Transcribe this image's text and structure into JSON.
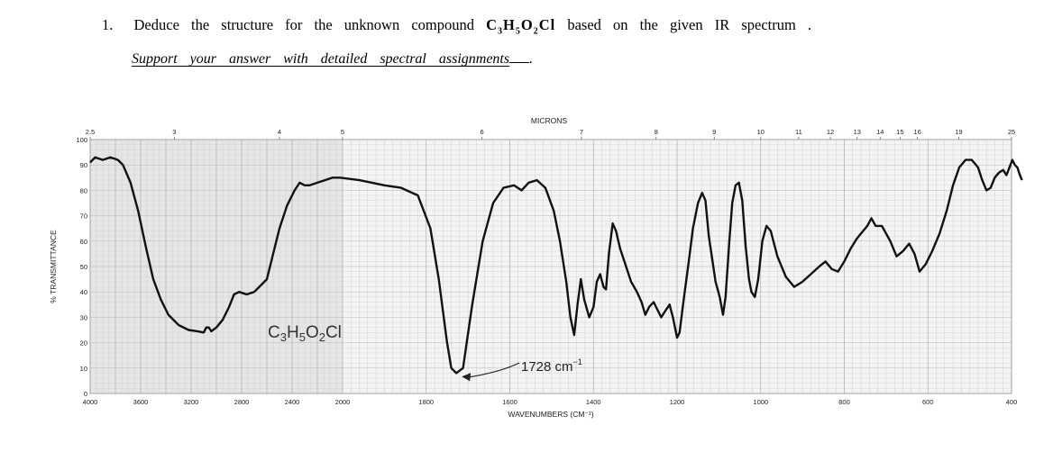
{
  "question": {
    "number": "1.",
    "text_before": "Deduce the structure for the unknown compound",
    "formula_parts": [
      {
        "t": "C",
        "sub": false
      },
      {
        "t": "3",
        "sub": true
      },
      {
        "t": "H",
        "sub": false
      },
      {
        "t": "5",
        "sub": true
      },
      {
        "t": "O",
        "sub": false
      },
      {
        "t": "2",
        "sub": true
      },
      {
        "t": "Cl",
        "sub": false
      }
    ],
    "text_after": "based on the given IR spectrum .",
    "support_text": "Support your answer with detailed spectral assignments",
    "support_trailing": "."
  },
  "chart_data": {
    "type": "line",
    "title": "MICRONS",
    "xlabel": "WAVENUMBERS (CM⁻¹)",
    "ylabel": "% TRANSMITTANCE",
    "x_ticks": [
      "4000",
      "3600",
      "3200",
      "2800",
      "2400",
      "2000",
      "1800",
      "1600",
      "1400",
      "1200",
      "1000",
      "800",
      "600",
      "400"
    ],
    "y_ticks": [
      "100",
      "90",
      "80",
      "70",
      "60",
      "50",
      "40",
      "30",
      "20",
      "10",
      "0"
    ],
    "micron_ticks": [
      "2.5",
      "3",
      "4",
      "5",
      "6",
      "7",
      "8",
      "9",
      "10",
      "11",
      "12",
      "13",
      "14",
      "15",
      "16",
      "19",
      "25"
    ],
    "ylim": [
      0,
      100
    ],
    "compound_label": {
      "parts": [
        {
          "t": "C",
          "sub": false
        },
        {
          "t": "3",
          "sub": true
        },
        {
          "t": "H",
          "sub": false
        },
        {
          "t": "5",
          "sub": true
        },
        {
          "t": "O",
          "sub": false
        },
        {
          "t": "2",
          "sub": true
        },
        {
          "t": "Cl",
          "sub": false
        }
      ]
    },
    "annotation": {
      "text": "1728 cm",
      "sup": "−1",
      "wavenumber": 1728
    },
    "series": [
      {
        "points": [
          [
            4000,
            91
          ],
          [
            3960,
            93
          ],
          [
            3900,
            92
          ],
          [
            3840,
            93
          ],
          [
            3780,
            92
          ],
          [
            3740,
            90
          ],
          [
            3680,
            83
          ],
          [
            3620,
            72
          ],
          [
            3560,
            58
          ],
          [
            3500,
            45
          ],
          [
            3440,
            37
          ],
          [
            3380,
            31
          ],
          [
            3300,
            27
          ],
          [
            3220,
            25
          ],
          [
            3150,
            24.5
          ],
          [
            3100,
            24
          ],
          [
            3080,
            26
          ],
          [
            3060,
            26
          ],
          [
            3040,
            24.5
          ],
          [
            3000,
            26
          ],
          [
            2950,
            29
          ],
          [
            2900,
            34
          ],
          [
            2860,
            39
          ],
          [
            2820,
            40
          ],
          [
            2760,
            39
          ],
          [
            2700,
            40
          ],
          [
            2660,
            42
          ],
          [
            2600,
            45
          ],
          [
            2560,
            53
          ],
          [
            2500,
            65
          ],
          [
            2440,
            74
          ],
          [
            2380,
            80
          ],
          [
            2340,
            83
          ],
          [
            2300,
            82
          ],
          [
            2260,
            82
          ],
          [
            2200,
            83
          ],
          [
            2140,
            84
          ],
          [
            2080,
            85
          ],
          [
            2020,
            85
          ],
          [
            1960,
            84
          ],
          [
            1900,
            82
          ],
          [
            1860,
            81
          ],
          [
            1820,
            78
          ],
          [
            1790,
            65
          ],
          [
            1770,
            45
          ],
          [
            1750,
            20
          ],
          [
            1740,
            10
          ],
          [
            1728,
            8
          ],
          [
            1712,
            10
          ],
          [
            1690,
            35
          ],
          [
            1665,
            60
          ],
          [
            1640,
            75
          ],
          [
            1615,
            81
          ],
          [
            1590,
            82
          ],
          [
            1572,
            80
          ],
          [
            1555,
            83
          ],
          [
            1535,
            84
          ],
          [
            1515,
            81
          ],
          [
            1495,
            72
          ],
          [
            1480,
            60
          ],
          [
            1465,
            44
          ],
          [
            1455,
            30
          ],
          [
            1446,
            23
          ],
          [
            1438,
            35
          ],
          [
            1430,
            45
          ],
          [
            1422,
            37
          ],
          [
            1410,
            30
          ],
          [
            1400,
            34
          ],
          [
            1392,
            44
          ],
          [
            1384,
            47
          ],
          [
            1376,
            42
          ],
          [
            1370,
            41
          ],
          [
            1363,
            55
          ],
          [
            1354,
            67
          ],
          [
            1346,
            64
          ],
          [
            1336,
            57
          ],
          [
            1326,
            52
          ],
          [
            1310,
            44
          ],
          [
            1296,
            40
          ],
          [
            1285,
            36
          ],
          [
            1276,
            31
          ],
          [
            1267,
            34
          ],
          [
            1256,
            36
          ],
          [
            1247,
            33
          ],
          [
            1238,
            30
          ],
          [
            1226,
            33
          ],
          [
            1218,
            35
          ],
          [
            1210,
            30
          ],
          [
            1200,
            22
          ],
          [
            1194,
            24
          ],
          [
            1185,
            36
          ],
          [
            1172,
            52
          ],
          [
            1162,
            65
          ],
          [
            1150,
            75
          ],
          [
            1140,
            79
          ],
          [
            1132,
            76
          ],
          [
            1124,
            62
          ],
          [
            1115,
            52
          ],
          [
            1108,
            44
          ],
          [
            1098,
            38
          ],
          [
            1090,
            31
          ],
          [
            1084,
            38
          ],
          [
            1075,
            60
          ],
          [
            1068,
            75
          ],
          [
            1060,
            82
          ],
          [
            1052,
            83
          ],
          [
            1044,
            76
          ],
          [
            1036,
            58
          ],
          [
            1028,
            45
          ],
          [
            1022,
            40
          ],
          [
            1014,
            38
          ],
          [
            1006,
            45
          ],
          [
            996,
            60
          ],
          [
            986,
            66
          ],
          [
            976,
            64
          ],
          [
            960,
            54
          ],
          [
            940,
            46
          ],
          [
            920,
            42
          ],
          [
            900,
            44
          ],
          [
            880,
            47
          ],
          [
            860,
            50
          ],
          [
            845,
            52
          ],
          [
            830,
            49
          ],
          [
            815,
            48
          ],
          [
            800,
            52
          ],
          [
            785,
            57
          ],
          [
            770,
            61
          ],
          [
            755,
            64
          ],
          [
            745,
            66
          ],
          [
            735,
            69
          ],
          [
            725,
            66
          ],
          [
            710,
            66
          ],
          [
            690,
            60
          ],
          [
            675,
            54
          ],
          [
            660,
            56
          ],
          [
            645,
            59
          ],
          [
            632,
            55
          ],
          [
            620,
            48
          ],
          [
            605,
            51
          ],
          [
            590,
            56
          ],
          [
            572,
            63
          ],
          [
            555,
            72
          ],
          [
            540,
            82
          ],
          [
            525,
            89
          ],
          [
            510,
            92
          ],
          [
            495,
            92
          ],
          [
            480,
            89
          ],
          [
            470,
            84
          ],
          [
            460,
            80
          ],
          [
            450,
            81
          ],
          [
            440,
            85
          ],
          [
            430,
            87
          ],
          [
            420,
            88
          ],
          [
            412,
            86
          ],
          [
            405,
            89
          ],
          [
            398,
            92
          ],
          [
            392,
            90
          ],
          [
            386,
            89
          ],
          [
            380,
            86
          ],
          [
            375,
            84
          ]
        ]
      }
    ]
  }
}
